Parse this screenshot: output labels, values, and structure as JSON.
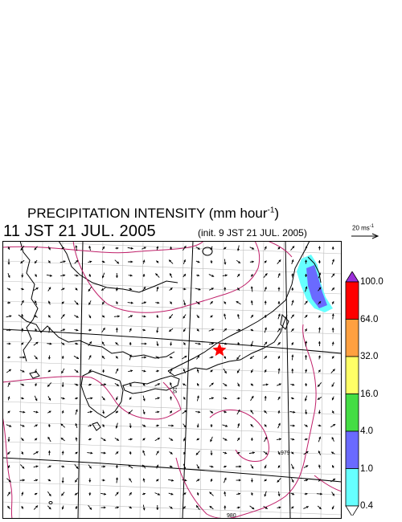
{
  "title": {
    "text": "PRECIPITATION INTENSITY (mm hour",
    "exponent": "-1",
    "close": ")"
  },
  "timestamp": "11 JST 21 JUL. 2005",
  "init_time": "(init. 9 JST 21 JUL. 2005)",
  "wind_scale": {
    "label": "20 ms",
    "exponent": "-1"
  },
  "legend": {
    "labels": [
      "100.0",
      "64.0",
      "32.0",
      "16.0",
      "4.0",
      "1.0",
      "0.4"
    ],
    "colors": [
      "#9b30d9",
      "#ff0000",
      "#ffa040",
      "#ffff66",
      "#44dd44",
      "#6a6aff",
      "#66ffff",
      "#ffffff"
    ]
  },
  "map": {
    "contour_labels": [
      "979",
      "980",
      "16"
    ],
    "marker": "red star",
    "precip_area_colors": [
      "#66ffff",
      "#6a6aff"
    ],
    "contour_color": "#c0206a",
    "grid_color": "#bbbbbb"
  }
}
